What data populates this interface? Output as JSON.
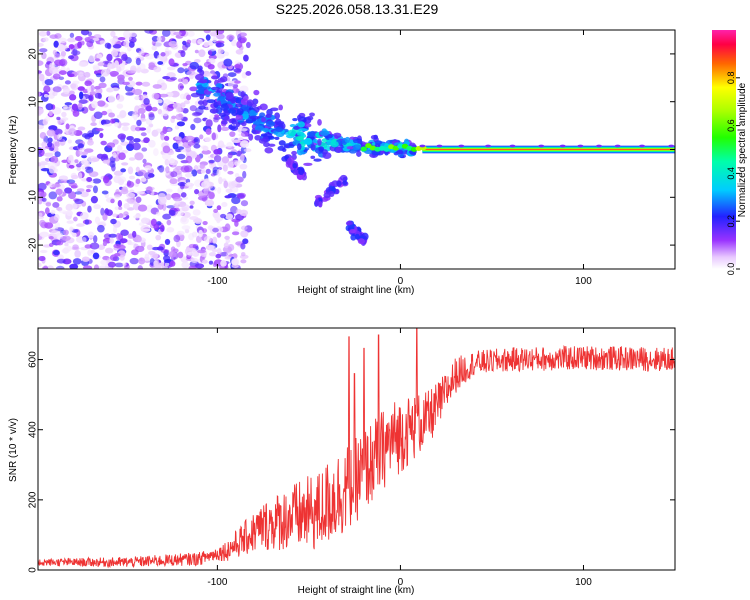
{
  "title": "S225.2026.058.13.31.E29",
  "chart_data": [
    {
      "type": "heatmap",
      "name": "spectrogram",
      "xlabel": "Height of straight line (km)",
      "ylabel": "Frequency (Hz)",
      "xlim": [
        -198,
        150
      ],
      "ylim": [
        -25,
        25
      ],
      "xticks": [
        -100,
        0,
        100
      ],
      "yticks": [
        -20,
        -10,
        0,
        10,
        20
      ],
      "colorbar": {
        "label": "Normalized spectral amplitude",
        "range": [
          0,
          1
        ],
        "ticks": [
          0.0,
          0.2,
          0.4,
          0.6,
          0.8
        ],
        "tick_labels": [
          "0.0",
          "0.2",
          "0.4",
          "0.6",
          "0.8"
        ]
      },
      "description_points": {
        "noise_region_km": [
          -198,
          -95
        ],
        "dispersive_ridge": [
          {
            "x": -110,
            "y": 14
          },
          {
            "x": -90,
            "y": 9
          },
          {
            "x": -75,
            "y": 5
          },
          {
            "x": -60,
            "y": 3
          },
          {
            "x": -45,
            "y": 2
          },
          {
            "x": -30,
            "y": 1
          },
          {
            "x": -15,
            "y": 0.5
          },
          {
            "x": 0,
            "y": 0.3
          }
        ],
        "dispersive_tail": [
          {
            "x": -62,
            "y": -2
          },
          {
            "x": -52,
            "y": -6
          },
          {
            "x": -45,
            "y": -11
          },
          {
            "x": -30,
            "y": -6
          },
          {
            "x": -28,
            "y": -16
          },
          {
            "x": -20,
            "y": -19
          }
        ],
        "carrier_start_km": 12,
        "carrier_frequency_hz": 0
      }
    },
    {
      "type": "line",
      "name": "snr",
      "xlabel": "Height of straight line (km)",
      "ylabel": "SNR (10 * v/v)",
      "xlim": [
        -198,
        150
      ],
      "ylim": [
        0,
        690
      ],
      "xticks": [
        -100,
        0,
        100
      ],
      "yticks": [
        0,
        200,
        400,
        600
      ],
      "color": "#ee3333",
      "trend": [
        {
          "x": -198,
          "y": 22
        },
        {
          "x": -150,
          "y": 22
        },
        {
          "x": -110,
          "y": 32
        },
        {
          "x": -95,
          "y": 55
        },
        {
          "x": -85,
          "y": 90
        },
        {
          "x": -75,
          "y": 125
        },
        {
          "x": -60,
          "y": 150
        },
        {
          "x": -45,
          "y": 165
        },
        {
          "x": -38,
          "y": 200
        },
        {
          "x": -30,
          "y": 230
        },
        {
          "x": -22,
          "y": 270
        },
        {
          "x": -15,
          "y": 310
        },
        {
          "x": -5,
          "y": 370
        },
        {
          "x": 5,
          "y": 400
        },
        {
          "x": 15,
          "y": 430
        },
        {
          "x": 22,
          "y": 480
        },
        {
          "x": 30,
          "y": 555
        },
        {
          "x": 40,
          "y": 590
        },
        {
          "x": 60,
          "y": 600
        },
        {
          "x": 100,
          "y": 605
        },
        {
          "x": 150,
          "y": 600
        }
      ],
      "spikes": [
        {
          "x": -28,
          "y": 665
        },
        {
          "x": -25,
          "y": 560
        },
        {
          "x": -20,
          "y": 632
        },
        {
          "x": -12,
          "y": 670
        },
        {
          "x": 9,
          "y": 690
        }
      ],
      "noise_amplitude": [
        {
          "x": -198,
          "y": 10
        },
        {
          "x": -100,
          "y": 20
        },
        {
          "x": -70,
          "y": 80
        },
        {
          "x": -35,
          "y": 130
        },
        {
          "x": 0,
          "y": 110
        },
        {
          "x": 25,
          "y": 60
        },
        {
          "x": 40,
          "y": 35
        },
        {
          "x": 150,
          "y": 35
        }
      ]
    }
  ]
}
